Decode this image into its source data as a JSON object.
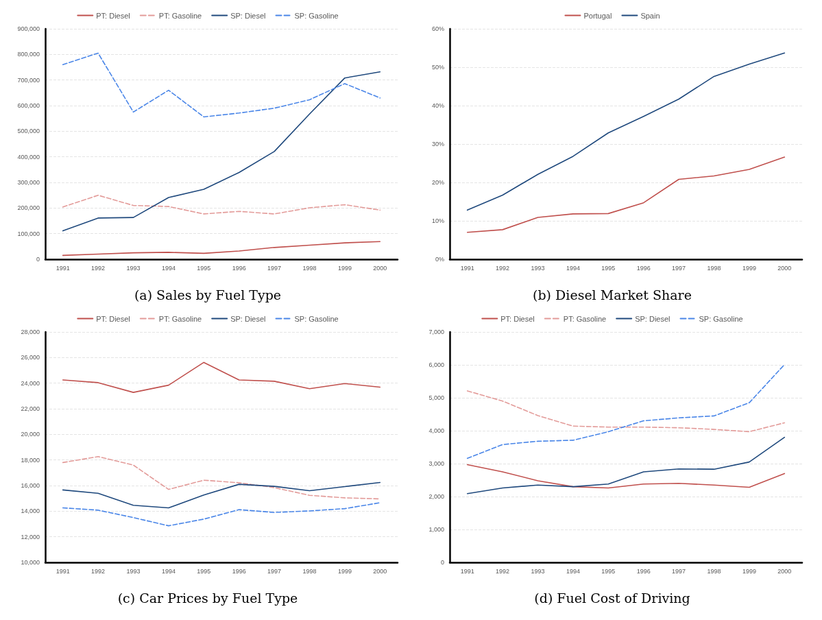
{
  "chart_data": [
    {
      "type": "line",
      "title": "(a) Sales by Fuel Type",
      "categories": [
        "1991",
        "1992",
        "1993",
        "1994",
        "1995",
        "1996",
        "1997",
        "1998",
        "1999",
        "2000"
      ],
      "ylim": [
        0,
        900000
      ],
      "yticks": [
        0,
        {
          "value": 100000,
          "label": "100,000"
        },
        {
          "value": 200000,
          "label": "200,000"
        },
        {
          "value": 300000,
          "label": "300,000"
        },
        {
          "value": 400000,
          "label": "400,000"
        },
        {
          "value": 500000,
          "label": "500,000"
        },
        {
          "value": 600000,
          "label": "600,000"
        },
        {
          "value": 700000,
          "label": "700,000"
        },
        {
          "value": 800000,
          "label": "800,000"
        },
        {
          "value": 900000,
          "label": "900,000"
        }
      ],
      "grid": "y",
      "legend": "top",
      "marker": "none",
      "series": [
        {
          "name": "PT: Diesel",
          "color": "#c0504d",
          "line_style": "solid",
          "values": [
            15000,
            20000,
            25000,
            27000,
            23000,
            32000,
            46000,
            55000,
            64000,
            69000
          ]
        },
        {
          "name": "PT: Gasoline",
          "color": "#e39b99",
          "line_style": "dashed",
          "values": [
            204000,
            250000,
            210000,
            206000,
            177000,
            187000,
            177000,
            201000,
            213000,
            192000
          ]
        },
        {
          "name": "SP: Diesel",
          "color": "#1f497d",
          "line_style": "solid",
          "values": [
            111000,
            161000,
            163000,
            241000,
            273000,
            339000,
            421000,
            567000,
            708000,
            732000
          ]
        },
        {
          "name": "SP: Gasoline",
          "color": "#4a86e8",
          "line_style": "dashed",
          "values": [
            760000,
            805000,
            575000,
            660000,
            556000,
            571000,
            590000,
            623000,
            686000,
            630000
          ]
        }
      ]
    },
    {
      "type": "line",
      "title": "(b) Diesel Market Share",
      "categories": [
        "1991",
        "1992",
        "1993",
        "1994",
        "1995",
        "1996",
        "1997",
        "1998",
        "1999",
        "2000"
      ],
      "ylim": [
        0,
        60
      ],
      "yticks": [
        {
          "value": 0,
          "label": "0%"
        },
        {
          "value": 10,
          "label": "10%"
        },
        {
          "value": 20,
          "label": "20%"
        },
        {
          "value": 30,
          "label": "30%"
        },
        {
          "value": 40,
          "label": "40%"
        },
        {
          "value": 50,
          "label": "50%"
        },
        {
          "value": 60,
          "label": "60%"
        }
      ],
      "grid": "y",
      "legend": "top",
      "marker": "none",
      "series": [
        {
          "name": "Portugal",
          "color": "#c0504d",
          "line_style": "solid",
          "values": [
            7.0,
            7.7,
            10.9,
            11.8,
            11.9,
            14.7,
            20.8,
            21.7,
            23.4,
            26.6
          ]
        },
        {
          "name": "Spain",
          "color": "#1f497d",
          "line_style": "solid",
          "values": [
            12.8,
            16.7,
            22.1,
            26.8,
            32.9,
            37.2,
            41.7,
            47.6,
            50.8,
            53.7
          ]
        }
      ]
    },
    {
      "type": "line",
      "title": "(c) Car Prices by Fuel Type",
      "categories": [
        "1991",
        "1992",
        "1993",
        "1994",
        "1995",
        "1996",
        "1997",
        "1998",
        "1999",
        "2000"
      ],
      "ylim": [
        10000,
        28000
      ],
      "yticks": [
        {
          "value": 10000,
          "label": "10,000"
        },
        {
          "value": 12000,
          "label": "12,000"
        },
        {
          "value": 14000,
          "label": "14,000"
        },
        {
          "value": 16000,
          "label": "16,000"
        },
        {
          "value": 18000,
          "label": "18,000"
        },
        {
          "value": 20000,
          "label": "20,000"
        },
        {
          "value": 22000,
          "label": "22,000"
        },
        {
          "value": 24000,
          "label": "24,000"
        },
        {
          "value": 26000,
          "label": "26,000"
        },
        {
          "value": 28000,
          "label": "28,000"
        }
      ],
      "grid": "y",
      "legend": "top",
      "marker": "none",
      "series": [
        {
          "name": "PT: Diesel",
          "color": "#c0504d",
          "line_style": "solid",
          "values": [
            24250,
            24040,
            23280,
            23840,
            25620,
            24250,
            24150,
            23570,
            23970,
            23690
          ]
        },
        {
          "name": "PT: Gasoline",
          "color": "#e39b99",
          "line_style": "dashed",
          "values": [
            17800,
            18260,
            17600,
            15700,
            16420,
            16220,
            15840,
            15240,
            15040,
            14960
          ]
        },
        {
          "name": "SP: Diesel",
          "color": "#1f497d",
          "line_style": "solid",
          "values": [
            15660,
            15400,
            14460,
            14260,
            15260,
            16100,
            15940,
            15600,
            15920,
            16240
          ]
        },
        {
          "name": "SP: Gasoline",
          "color": "#4a86e8",
          "line_style": "dashed",
          "values": [
            14260,
            14080,
            13500,
            12860,
            13380,
            14120,
            13900,
            14020,
            14200,
            14660
          ]
        }
      ]
    },
    {
      "type": "line",
      "title": "(d) Fuel Cost of Driving",
      "categories": [
        "1991",
        "1992",
        "1993",
        "1994",
        "1995",
        "1996",
        "1997",
        "1998",
        "1999",
        "2000"
      ],
      "ylim": [
        0,
        7000
      ],
      "yticks": [
        0,
        {
          "value": 1000,
          "label": "1,000"
        },
        {
          "value": 2000,
          "label": "2,000"
        },
        {
          "value": 3000,
          "label": "3,000"
        },
        {
          "value": 4000,
          "label": "4,000"
        },
        {
          "value": 5000,
          "label": "5,000"
        },
        {
          "value": 6000,
          "label": "6,000"
        },
        {
          "value": 7000,
          "label": "7,000"
        }
      ],
      "grid": "y",
      "legend": "top",
      "marker": "none",
      "series": [
        {
          "name": "PT: Diesel",
          "color": "#c0504d",
          "line_style": "solid",
          "values": [
            2970,
            2750,
            2480,
            2300,
            2260,
            2380,
            2400,
            2350,
            2280,
            2700
          ]
        },
        {
          "name": "PT: Gasoline",
          "color": "#e39b99",
          "line_style": "dashed",
          "values": [
            5210,
            4900,
            4460,
            4140,
            4110,
            4110,
            4090,
            4040,
            3970,
            4240
          ]
        },
        {
          "name": "SP: Diesel",
          "color": "#1f497d",
          "line_style": "solid",
          "values": [
            2090,
            2260,
            2350,
            2300,
            2380,
            2750,
            2840,
            2830,
            3050,
            3800
          ]
        },
        {
          "name": "SP: Gasoline",
          "color": "#4a86e8",
          "line_style": "dashed",
          "values": [
            3160,
            3580,
            3680,
            3710,
            3970,
            4300,
            4390,
            4450,
            4850,
            6010
          ]
        }
      ]
    }
  ]
}
